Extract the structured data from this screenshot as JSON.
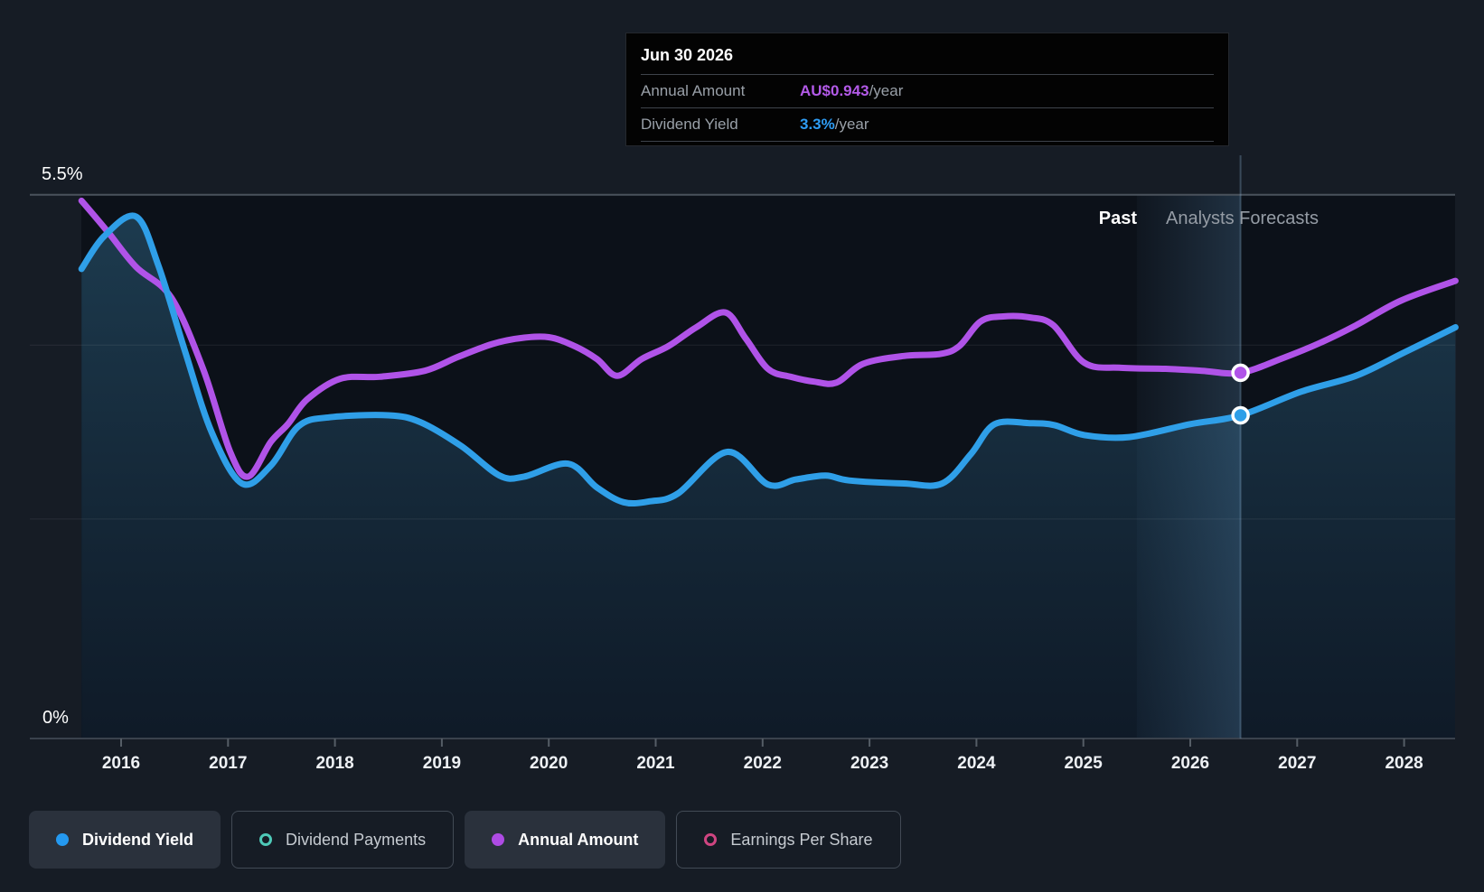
{
  "header_tooltip": {
    "date": "Jun 30 2026",
    "rows": [
      {
        "label": "Annual Amount",
        "value": "AU$0.943",
        "suffix": "/year",
        "color": "#b35ae8"
      },
      {
        "label": "Dividend Yield",
        "value": "3.3%",
        "suffix": "/year",
        "color": "#2e9df5"
      }
    ]
  },
  "labels": {
    "y_axis_top": "5.5%",
    "y_axis_bottom": "0%",
    "past": "Past",
    "forecast": "Analysts Forecasts"
  },
  "legend": {
    "items": [
      {
        "label": "Dividend Yield",
        "marker": "filled",
        "color": "#2499f0",
        "active": true
      },
      {
        "label": "Dividend Payments",
        "marker": "ring",
        "color": "#4ec9b8",
        "active": false
      },
      {
        "label": "Annual Amount",
        "marker": "filled",
        "color": "#ae4be4",
        "active": true
      },
      {
        "label": "Earnings Per Share",
        "marker": "ring",
        "color": "#cf4581",
        "active": false
      }
    ]
  },
  "chart_data": {
    "type": "line",
    "title": "Dividend yield and annual dividend amount, past and analyst forecasts",
    "x_ticks": [
      2016,
      2017,
      2018,
      2019,
      2020,
      2021,
      2022,
      2023,
      2024,
      2025,
      2026,
      2027,
      2028
    ],
    "x_range": [
      2015.63,
      2028.48
    ],
    "y_axis": {
      "unit": "%",
      "min": 0,
      "max": 5.5,
      "labeled": [
        0,
        5.5
      ],
      "gridlines_pct": [
        5.5,
        3.98,
        2.22,
        0
      ]
    },
    "past_forecast_divider_year": 2025.5,
    "hover": {
      "date": "Jun 30 2026",
      "year": 2026.47,
      "markers": [
        {
          "series": "Annual Amount",
          "pos_pct": 3.7,
          "value": "AU$0.943/year"
        },
        {
          "series": "Dividend Yield",
          "pos_pct": 3.27,
          "value": "3.3%/year"
        }
      ]
    },
    "series": [
      {
        "name": "Annual Amount",
        "color": "#b053e8",
        "unit": "AU$ per share (own hidden scale, plotted on % canvas)",
        "points": [
          [
            2015.63,
            5.44
          ],
          [
            2015.88,
            5.12
          ],
          [
            2016.14,
            4.77
          ],
          [
            2016.47,
            4.46
          ],
          [
            2016.77,
            3.73
          ],
          [
            2017.02,
            2.9
          ],
          [
            2017.19,
            2.65
          ],
          [
            2017.4,
            3.0
          ],
          [
            2017.56,
            3.18
          ],
          [
            2017.74,
            3.43
          ],
          [
            2018.05,
            3.64
          ],
          [
            2018.42,
            3.66
          ],
          [
            2018.84,
            3.72
          ],
          [
            2019.15,
            3.86
          ],
          [
            2019.47,
            3.99
          ],
          [
            2019.73,
            4.05
          ],
          [
            2020.0,
            4.06
          ],
          [
            2020.24,
            3.97
          ],
          [
            2020.45,
            3.84
          ],
          [
            2020.64,
            3.67
          ],
          [
            2020.87,
            3.84
          ],
          [
            2021.12,
            3.97
          ],
          [
            2021.38,
            4.16
          ],
          [
            2021.65,
            4.31
          ],
          [
            2021.84,
            4.05
          ],
          [
            2022.05,
            3.74
          ],
          [
            2022.26,
            3.66
          ],
          [
            2022.48,
            3.61
          ],
          [
            2022.69,
            3.6
          ],
          [
            2022.94,
            3.79
          ],
          [
            2023.32,
            3.87
          ],
          [
            2023.66,
            3.89
          ],
          [
            2023.84,
            3.97
          ],
          [
            2024.04,
            4.22
          ],
          [
            2024.25,
            4.27
          ],
          [
            2024.5,
            4.26
          ],
          [
            2024.72,
            4.18
          ],
          [
            2025.01,
            3.8
          ],
          [
            2025.35,
            3.75
          ],
          [
            2025.77,
            3.74
          ],
          [
            2026.11,
            3.72
          ],
          [
            2026.47,
            3.7
          ],
          [
            2026.87,
            3.85
          ],
          [
            2027.21,
            4.0
          ],
          [
            2027.55,
            4.18
          ],
          [
            2027.97,
            4.43
          ],
          [
            2028.48,
            4.63
          ]
        ]
      },
      {
        "name": "Dividend Yield",
        "color": "#2f9fe8",
        "unit": "%",
        "fill_area": true,
        "points": [
          [
            2015.63,
            4.75
          ],
          [
            2015.84,
            5.08
          ],
          [
            2016.14,
            5.28
          ],
          [
            2016.35,
            4.78
          ],
          [
            2016.6,
            3.91
          ],
          [
            2016.85,
            3.09
          ],
          [
            2017.13,
            2.58
          ],
          [
            2017.4,
            2.76
          ],
          [
            2017.66,
            3.16
          ],
          [
            2017.95,
            3.25
          ],
          [
            2018.5,
            3.27
          ],
          [
            2018.8,
            3.2
          ],
          [
            2019.18,
            2.96
          ],
          [
            2019.54,
            2.66
          ],
          [
            2019.77,
            2.65
          ],
          [
            2020.18,
            2.78
          ],
          [
            2020.45,
            2.54
          ],
          [
            2020.7,
            2.39
          ],
          [
            2020.95,
            2.4
          ],
          [
            2021.21,
            2.48
          ],
          [
            2021.67,
            2.9
          ],
          [
            2022.05,
            2.57
          ],
          [
            2022.31,
            2.62
          ],
          [
            2022.59,
            2.66
          ],
          [
            2022.81,
            2.61
          ],
          [
            2023.32,
            2.58
          ],
          [
            2023.68,
            2.58
          ],
          [
            2023.95,
            2.88
          ],
          [
            2024.17,
            3.18
          ],
          [
            2024.5,
            3.19
          ],
          [
            2024.73,
            3.17
          ],
          [
            2025.01,
            3.07
          ],
          [
            2025.43,
            3.05
          ],
          [
            2026.0,
            3.18
          ],
          [
            2026.47,
            3.27
          ],
          [
            2027.04,
            3.51
          ],
          [
            2027.55,
            3.67
          ],
          [
            2028.01,
            3.91
          ],
          [
            2028.48,
            4.16
          ]
        ]
      }
    ],
    "legend_position": "bottom",
    "grid": true
  }
}
